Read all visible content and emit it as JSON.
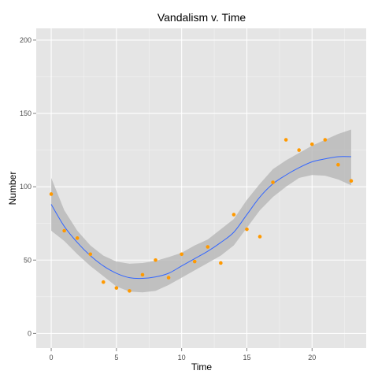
{
  "colors": {
    "panel_background": "#e5e5e5",
    "grid_major": "#ffffff",
    "grid_minor": "#f2f2f2",
    "points": "#ff9900",
    "smooth_line": "#3366ff",
    "confidence_band": "#b3b3b3",
    "tick_text": "#4d4d4d"
  },
  "chart_data": {
    "type": "scatter",
    "title": "Vandalism v. Time",
    "xlabel": "Time",
    "ylabel": "Number",
    "xlim": [
      -1.15,
      24.15
    ],
    "ylim": [
      -10,
      208
    ],
    "x_ticks": [
      0,
      5,
      10,
      15,
      20
    ],
    "y_ticks": [
      0,
      50,
      100,
      150,
      200
    ],
    "grid": true,
    "legend": "none",
    "series": [
      {
        "x": [
          0,
          1,
          2,
          3,
          4,
          5,
          6,
          7,
          8,
          9,
          10,
          11,
          12,
          13,
          14,
          15,
          16,
          17,
          18,
          19,
          20,
          21,
          22,
          23
        ],
        "values": [
          95,
          70,
          65,
          54,
          35,
          31,
          29,
          40,
          50,
          38,
          54,
          49,
          59,
          48,
          81,
          71,
          66,
          103,
          132,
          125,
          129,
          132,
          115,
          104
        ]
      }
    ],
    "smooth": {
      "x": [
        0,
        1,
        2,
        3,
        4,
        5,
        6,
        7,
        8,
        9,
        10,
        11,
        12,
        13,
        14,
        15,
        16,
        17,
        18,
        19,
        20,
        21,
        22,
        23
      ],
      "fit": [
        88,
        73,
        62,
        53,
        46,
        41,
        38,
        37.5,
        38.5,
        41,
        46,
        51,
        56,
        62,
        69,
        81,
        93,
        102,
        108,
        113,
        117,
        119,
        120.5,
        120.5
      ],
      "lower": [
        70,
        63,
        54,
        46,
        39,
        32,
        28.5,
        28,
        29,
        33,
        38,
        43,
        48,
        53,
        60,
        72,
        84,
        93,
        100,
        106,
        108,
        107.5,
        105,
        101
      ],
      "upper": [
        106,
        84,
        70,
        60,
        53,
        49,
        47.5,
        48,
        49.5,
        52,
        55,
        60,
        64,
        71,
        78,
        91,
        102,
        112,
        118,
        123,
        128,
        132,
        136,
        139
      ]
    }
  }
}
